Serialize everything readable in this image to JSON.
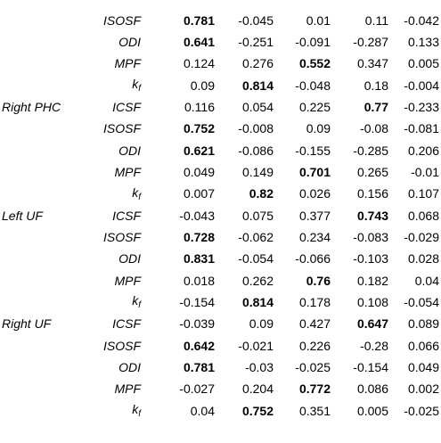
{
  "table": {
    "rows": [
      {
        "region": "",
        "metric": "",
        "metric_sub": "",
        "values": [
          "",
          "",
          "",
          "",
          ""
        ],
        "bold_index": -1,
        "cut": true
      },
      {
        "region": "",
        "metric": "ISOSF",
        "metric_sub": "",
        "values": [
          "0.781",
          "-0.045",
          "0.01",
          "0.11",
          "-0.042"
        ],
        "bold_index": 0
      },
      {
        "region": "",
        "metric": "ODI",
        "metric_sub": "",
        "values": [
          "0.641",
          "-0.251",
          "-0.091",
          "-0.287",
          "0.133"
        ],
        "bold_index": 0
      },
      {
        "region": "",
        "metric": "MPF",
        "metric_sub": "",
        "values": [
          "0.124",
          "0.276",
          "0.552",
          "0.347",
          "0.005"
        ],
        "bold_index": 2
      },
      {
        "region": "",
        "metric": "k",
        "metric_sub": "f",
        "values": [
          "0.09",
          "0.814",
          "-0.048",
          "0.18",
          "-0.004"
        ],
        "bold_index": 1
      },
      {
        "region": "Right PHC",
        "metric": "ICSF",
        "metric_sub": "",
        "values": [
          "0.116",
          "0.054",
          "0.225",
          "0.77",
          "-0.233"
        ],
        "bold_index": 3
      },
      {
        "region": "",
        "metric": "ISOSF",
        "metric_sub": "",
        "values": [
          "0.752",
          "-0.008",
          "0.09",
          "-0.08",
          "-0.081"
        ],
        "bold_index": 0
      },
      {
        "region": "",
        "metric": "ODI",
        "metric_sub": "",
        "values": [
          "0.621",
          "-0.086",
          "-0.155",
          "-0.285",
          "0.206"
        ],
        "bold_index": 0
      },
      {
        "region": "",
        "metric": "MPF",
        "metric_sub": "",
        "values": [
          "0.049",
          "0.149",
          "0.701",
          "0.265",
          "-0.01"
        ],
        "bold_index": 2
      },
      {
        "region": "",
        "metric": "k",
        "metric_sub": "f",
        "values": [
          "0.007",
          "0.82",
          "0.026",
          "0.156",
          "0.107"
        ],
        "bold_index": 1
      },
      {
        "region": "Left UF",
        "metric": "ICSF",
        "metric_sub": "",
        "values": [
          "-0.043",
          "0.075",
          "0.377",
          "0.743",
          "0.068"
        ],
        "bold_index": 3
      },
      {
        "region": "",
        "metric": "ISOSF",
        "metric_sub": "",
        "values": [
          "0.728",
          "-0.062",
          "0.234",
          "-0.083",
          "-0.029"
        ],
        "bold_index": 0
      },
      {
        "region": "",
        "metric": "ODI",
        "metric_sub": "",
        "values": [
          "0.831",
          "-0.054",
          "-0.066",
          "-0.103",
          "0.028"
        ],
        "bold_index": 0
      },
      {
        "region": "",
        "metric": "MPF",
        "metric_sub": "",
        "values": [
          "0.018",
          "0.262",
          "0.76",
          "0.182",
          "0.04"
        ],
        "bold_index": 2
      },
      {
        "region": "",
        "metric": "k",
        "metric_sub": "f",
        "values": [
          "-0.154",
          "0.814",
          "0.178",
          "0.108",
          "-0.054"
        ],
        "bold_index": 1
      },
      {
        "region": "Right UF",
        "metric": "ICSF",
        "metric_sub": "",
        "values": [
          "-0.039",
          "0.09",
          "0.427",
          "0.647",
          "0.089"
        ],
        "bold_index": 3
      },
      {
        "region": "",
        "metric": "ISOSF",
        "metric_sub": "",
        "values": [
          "0.642",
          "-0.021",
          "0.226",
          "-0.28",
          "0.066"
        ],
        "bold_index": 0
      },
      {
        "region": "",
        "metric": "ODI",
        "metric_sub": "",
        "values": [
          "0.781",
          "-0.03",
          "-0.025",
          "-0.154",
          "0.049"
        ],
        "bold_index": 0
      },
      {
        "region": "",
        "metric": "MPF",
        "metric_sub": "",
        "values": [
          "-0.027",
          "0.204",
          "0.772",
          "0.086",
          "0.002"
        ],
        "bold_index": 2
      },
      {
        "region": "",
        "metric": "k",
        "metric_sub": "f",
        "values": [
          "0.04",
          "0.752",
          "0.351",
          "0.005",
          "-0.025"
        ],
        "bold_index": 1
      },
      {
        "region": "",
        "metric": "",
        "metric_sub": "",
        "values": [
          "",
          "",
          "",
          "",
          ""
        ],
        "bold_index": -1,
        "cut": true
      }
    ]
  }
}
